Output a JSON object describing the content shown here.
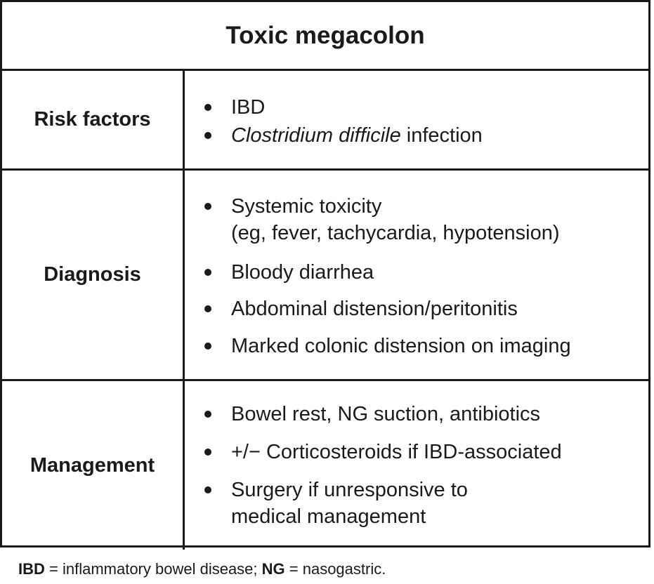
{
  "title": "Toxic megacolon",
  "risk_factors": {
    "label": "Risk factors",
    "items": [
      {
        "text": "IBD"
      },
      {
        "italic": "Clostridium difficile",
        "rest": " infection"
      }
    ]
  },
  "diagnosis": {
    "label": "Diagnosis",
    "items": [
      {
        "line1": "Systemic toxicity",
        "line2": "(eg, fever, tachycardia, hypotension)"
      },
      {
        "text": "Bloody diarrhea"
      },
      {
        "text": "Abdominal distension/peritonitis"
      },
      {
        "text": "Marked colonic distension on imaging"
      }
    ]
  },
  "management": {
    "label": "Management",
    "items": [
      {
        "text": "Bowel rest, NG suction, antibiotics"
      },
      {
        "text": "+/− Corticosteroids if IBD-associated"
      },
      {
        "line1": "Surgery if unresponsive to",
        "line2": "medical management"
      }
    ]
  },
  "footnote": {
    "abbr1": "IBD",
    "def1": " = inflammatory bowel disease; ",
    "abbr2": "NG",
    "def2": " = nasogastric."
  }
}
